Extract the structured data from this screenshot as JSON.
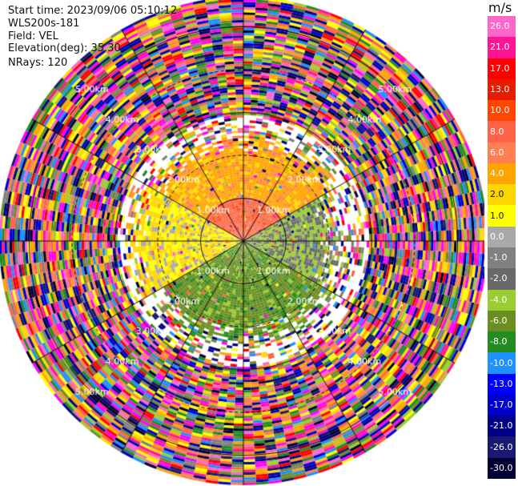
{
  "header": {
    "start_time": "Start time: 2023/09/06 05:10:12",
    "instrument": "WLS200s-181",
    "field": "Field: VEL",
    "elevation": "Elevation(deg): 35.30",
    "nrays": "NRays: 120"
  },
  "colorbar": {
    "title": "m/s",
    "ticks": [
      "26.0",
      "21.0",
      "17.0",
      "13.0",
      "10.0",
      "8.0",
      "6.0",
      "4.0",
      "2.0",
      "1.0",
      "0.0",
      "-1.0",
      "-2.0",
      "-4.0",
      "-6.0",
      "-8.0",
      "-10.0",
      "-13.0",
      "-17.0",
      "-21.0",
      "-26.0",
      "-30.0"
    ],
    "colors": [
      "#ff66cc",
      "#ff1493",
      "#ff0000",
      "#e51c00",
      "#ff4500",
      "#ff6347",
      "#ff7f50",
      "#ffa500",
      "#ffd700",
      "#ffff00",
      "#a9a9a9",
      "#808080",
      "#696969",
      "#9acd32",
      "#6b8e23",
      "#228b22",
      "#1e90ff",
      "#0000ff",
      "#0000cd",
      "#00008b",
      "#191970",
      "#000033"
    ]
  },
  "chart_data": {
    "type": "ppi",
    "field": "VEL",
    "units": "m/s",
    "nrays": 120,
    "elevation_deg": 35.3,
    "max_range_km": 5.7,
    "range_ring_labels": [
      "1.00km",
      "2.00km",
      "3.00km",
      "4.00km",
      "5.00km"
    ],
    "range_rings_km": [
      1,
      2,
      3,
      4,
      5
    ],
    "azimuth_lines_deg": [
      0,
      30,
      60,
      90,
      120,
      150,
      180,
      210,
      240,
      270,
      300,
      330
    ],
    "sectors_approx": [
      {
        "azimuth_from": 300,
        "azimuth_to": 60,
        "range_from_km": 0,
        "range_to_km": 2.6,
        "value_approx": 5
      },
      {
        "azimuth_from": 60,
        "azimuth_to": 120,
        "range_from_km": 0,
        "range_to_km": 2.3,
        "value_approx": -2
      },
      {
        "azimuth_from": 120,
        "azimuth_to": 240,
        "range_from_km": 0,
        "range_to_km": 2.5,
        "value_approx": -5
      },
      {
        "azimuth_from": 240,
        "azimuth_to": 300,
        "range_from_km": 0,
        "range_to_km": 2.8,
        "value_approx": 2
      }
    ],
    "far_field": "noise"
  }
}
